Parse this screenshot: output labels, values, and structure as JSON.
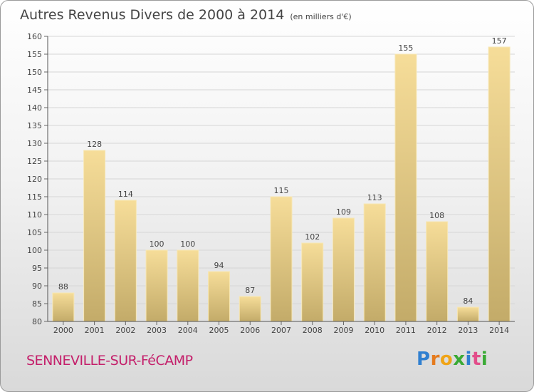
{
  "header": {
    "title": "Autres Revenus Divers de 2000 à 2014",
    "unit": "(en milliers d'€)"
  },
  "footer": {
    "commune": "SENNEVILLE-SUR-FéCAMP",
    "logo_letters": [
      "P",
      "r",
      "o",
      "x",
      "i",
      "t",
      "i"
    ]
  },
  "colors": {
    "bar_light": "#f5dc98",
    "bar_dark": "#c2aa68",
    "text": "#444444",
    "commune": "#c4206b",
    "grid": "#d6d6d6"
  },
  "chart_data": {
    "type": "bar",
    "title": "Autres Revenus Divers de 2000 à 2014",
    "subtitle": "(en milliers d'€)",
    "xlabel": "",
    "ylabel": "",
    "categories": [
      "2000",
      "2001",
      "2002",
      "2003",
      "2004",
      "2005",
      "2006",
      "2007",
      "2008",
      "2009",
      "2010",
      "2011",
      "2012",
      "2013",
      "2014"
    ],
    "values": [
      88,
      128,
      114,
      100,
      100,
      94,
      87,
      115,
      102,
      109,
      113,
      155,
      108,
      84,
      157
    ],
    "ylim": [
      80,
      160
    ],
    "yticks": [
      80,
      85,
      90,
      95,
      100,
      105,
      110,
      115,
      120,
      125,
      130,
      135,
      140,
      145,
      150,
      155,
      160
    ],
    "grid": true,
    "data_labels": true
  }
}
